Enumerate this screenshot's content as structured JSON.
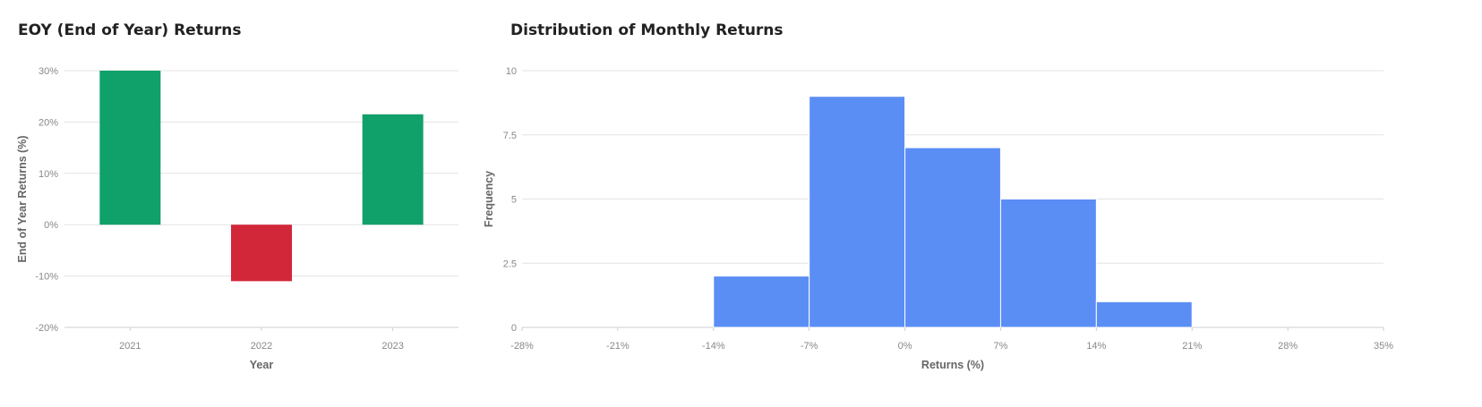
{
  "chart_data": [
    {
      "type": "bar",
      "title": "EOY (End of Year) Returns",
      "xlabel": "Year",
      "ylabel": "End of Year Returns (%)",
      "categories": [
        "2021",
        "2022",
        "2023"
      ],
      "values": [
        30,
        -11,
        21.5
      ],
      "ylim": [
        -20,
        30
      ],
      "yticks": [
        30,
        20,
        10,
        0,
        -10,
        -20
      ],
      "ytick_labels": [
        "30%",
        "20%",
        "10%",
        "0%",
        "-10%",
        "-20%"
      ],
      "positive_color": "#10a06a",
      "negative_color": "#d22739",
      "grid": true,
      "legend": "none"
    },
    {
      "type": "bar",
      "title": "Distribution of Monthly Returns",
      "xlabel": "Returns (%)",
      "ylabel": "Frequency",
      "bins": [
        {
          "from": -14,
          "to": -7,
          "count": 2
        },
        {
          "from": -7,
          "to": 0,
          "count": 9
        },
        {
          "from": 0,
          "to": 7,
          "count": 7
        },
        {
          "from": 7,
          "to": 14,
          "count": 5
        },
        {
          "from": 14,
          "to": 21,
          "count": 1
        }
      ],
      "xlim": [
        -28,
        35
      ],
      "ylim": [
        0,
        10
      ],
      "xticks": [
        -28,
        -21,
        -14,
        -7,
        0,
        7,
        14,
        21,
        28,
        35
      ],
      "xtick_labels": [
        "-28%",
        "-21%",
        "-14%",
        "-7%",
        "0%",
        "7%",
        "14%",
        "21%",
        "28%",
        "35%"
      ],
      "yticks": [
        10,
        7.5,
        5,
        2.5,
        0
      ],
      "ytick_labels": [
        "10",
        "7.5",
        "5",
        "2.5",
        "0"
      ],
      "bar_color": "#5b8ef5",
      "grid": true,
      "legend": "none"
    }
  ]
}
